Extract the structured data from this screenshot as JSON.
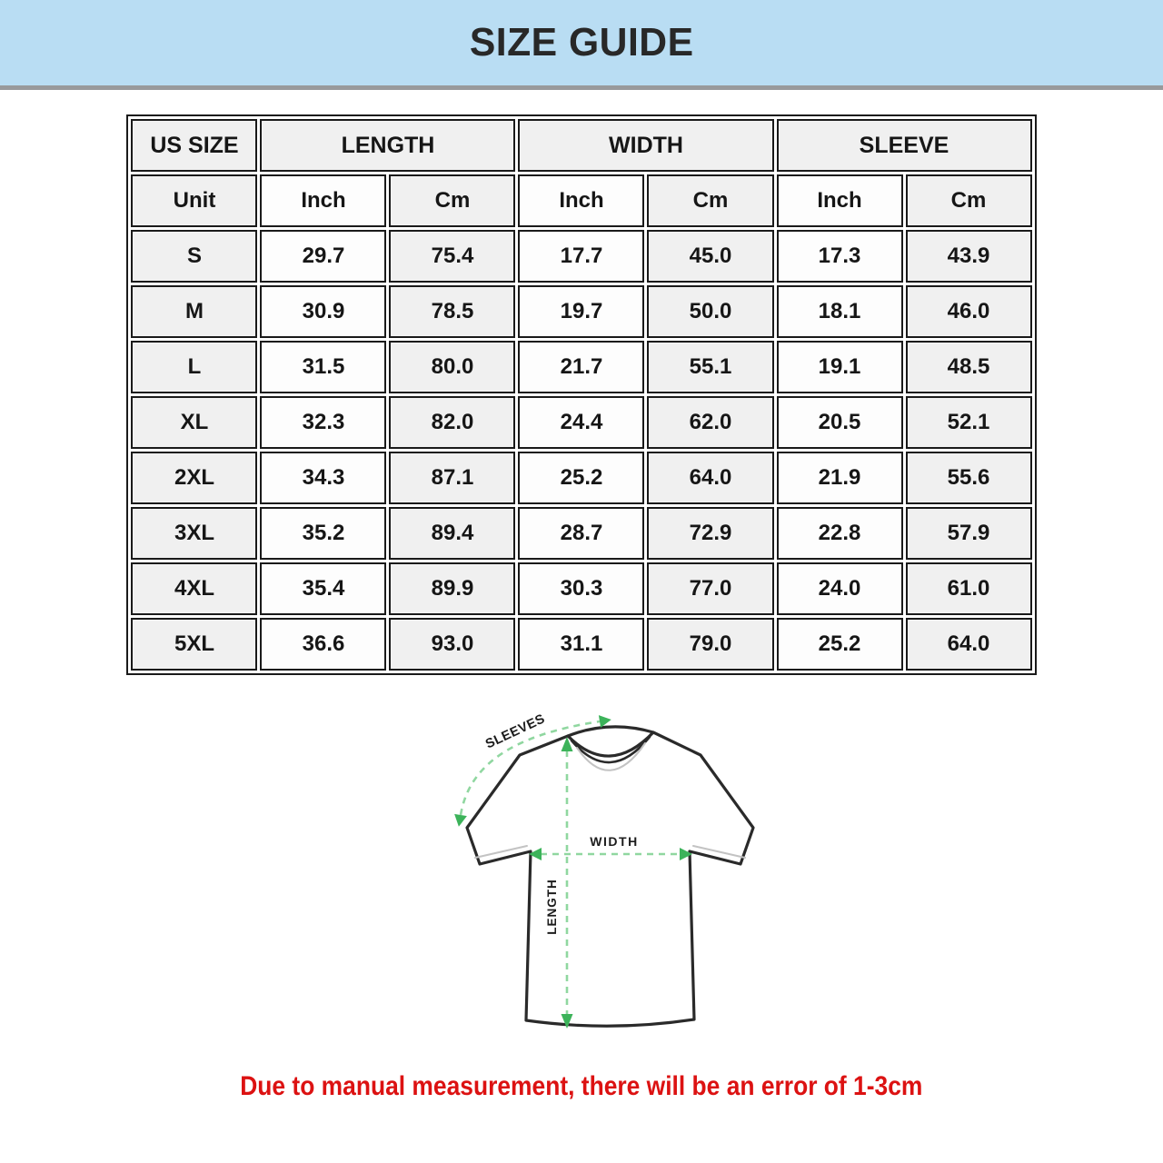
{
  "title": "SIZE GUIDE",
  "table": {
    "group_headers": [
      {
        "label": "US SIZE",
        "colspan": 1
      },
      {
        "label": "LENGTH",
        "colspan": 2
      },
      {
        "label": "WIDTH",
        "colspan": 2
      },
      {
        "label": "SLEEVE",
        "colspan": 2
      }
    ],
    "unit_row": [
      "Unit",
      "Inch",
      "Cm",
      "Inch",
      "Cm",
      "Inch",
      "Cm"
    ],
    "rows": [
      [
        "S",
        "29.7",
        "75.4",
        "17.7",
        "45.0",
        "17.3",
        "43.9"
      ],
      [
        "M",
        "30.9",
        "78.5",
        "19.7",
        "50.0",
        "18.1",
        "46.0"
      ],
      [
        "L",
        "31.5",
        "80.0",
        "21.7",
        "55.1",
        "19.1",
        "48.5"
      ],
      [
        "XL",
        "32.3",
        "82.0",
        "24.4",
        "62.0",
        "20.5",
        "52.1"
      ],
      [
        "2XL",
        "34.3",
        "87.1",
        "25.2",
        "64.0",
        "21.9",
        "55.6"
      ],
      [
        "3XL",
        "35.2",
        "89.4",
        "28.7",
        "72.9",
        "22.8",
        "57.9"
      ],
      [
        "4XL",
        "35.4",
        "89.9",
        "30.3",
        "77.0",
        "24.0",
        "61.0"
      ],
      [
        "5XL",
        "36.6",
        "93.0",
        "31.1",
        "79.0",
        "25.2",
        "64.0"
      ]
    ]
  },
  "diagram": {
    "sleeves_label": "SLEEVES",
    "width_label": "WIDTH",
    "length_label": "LENGTH"
  },
  "note": "Due to manual measurement, there will be an error of 1-3cm",
  "colors": {
    "banner_bg": "#b9ddf3",
    "banner_border": "#98999b",
    "cell_shade": "#f0f0f0",
    "table_line": "#1a1a1a",
    "note_red": "#dc1212",
    "dash_green": "#90d7a0",
    "arrow_green": "#3cb35a"
  }
}
